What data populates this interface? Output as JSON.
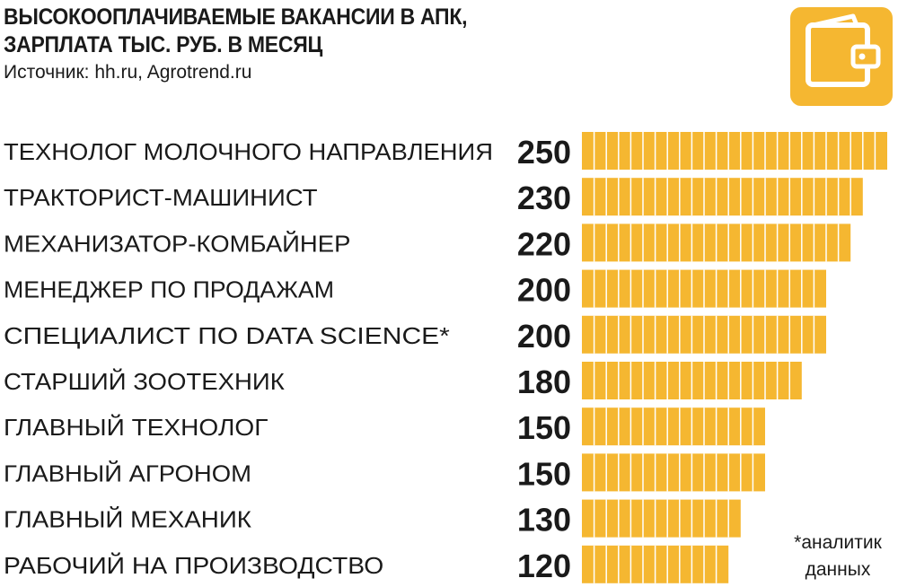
{
  "header": {
    "title_line1": "ВЫСОКООПЛАЧИВАЕМЫЕ ВАКАНСИИ В АПК,",
    "title_line2": "ЗАРПЛАТА ТЫС. РУБ. В МЕСЯЦ",
    "source": "Источник: hh.ru, Agrotrend.ru"
  },
  "icon": {
    "name": "wallet-icon",
    "color": "#f5b731"
  },
  "footnote": {
    "line1": "*аналитик",
    "line2": "данных"
  },
  "colors": {
    "bar": "#f5b731",
    "bar_divider": "#ffffff",
    "text": "#1a1a1a"
  },
  "chart_data": {
    "type": "bar",
    "orientation": "horizontal",
    "categories": [
      "ТЕХНОЛОГ МОЛОЧНОГО НАПРАВЛЕНИЯ",
      "ТРАКТОРИСТ-МАШИНИСТ",
      "МЕХАНИЗАТОР-КОМБАЙНЕР",
      "МЕНЕДЖЕР ПО ПРОДАЖАМ",
      "СПЕЦИАЛИСТ ПО DATA SCIENCE*",
      "СТАРШИЙ ЗООТЕХНИК",
      "ГЛАВНЫЙ ТЕХНОЛОГ",
      "ГЛАВНЫЙ АГРОНОМ",
      "ГЛАВНЫЙ МЕХАНИК",
      "РАБОЧИЙ НА ПРОИЗВОДСТВО"
    ],
    "values": [
      250,
      230,
      220,
      200,
      200,
      180,
      150,
      150,
      130,
      120
    ],
    "data_labels": [
      "250",
      "230",
      "220",
      "200",
      "200",
      "180",
      "150",
      "150",
      "130",
      "120"
    ],
    "segment_unit": 10,
    "xlim": [
      0,
      250
    ],
    "grid": false,
    "legend": "none"
  }
}
